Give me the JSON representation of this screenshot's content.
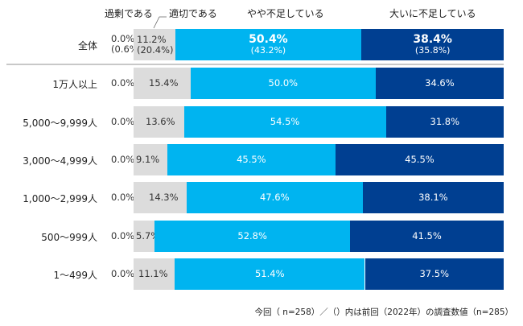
{
  "chart_data": {
    "type": "bar",
    "orientation": "horizontal-stacked-100",
    "legend": [
      "過剰である",
      "適切である",
      "やや不足している",
      "大いに不足している"
    ],
    "colors": [
      "#dcdcdc",
      "#dcdcdc",
      "#00b4f0",
      "#003f91"
    ],
    "xlim": [
      0,
      100
    ],
    "categories": [
      "全体",
      "1万人以上",
      "5,000〜9,999人",
      "3,000〜4,999人",
      "1,000〜2,999人",
      "500〜999人",
      "1〜499人"
    ],
    "series": [
      {
        "name": "過剰である",
        "values": [
          0.0,
          0.0,
          0.0,
          0.0,
          0.0,
          0.0,
          0.0
        ],
        "labels": [
          "0.0%",
          "0.0%",
          "0.0%",
          "0.0%",
          "0.0%",
          "0.0%",
          "0.0%"
        ]
      },
      {
        "name": "適切である",
        "values": [
          11.2,
          15.4,
          13.6,
          9.1,
          14.3,
          5.7,
          11.1
        ],
        "labels": [
          "11.2%",
          "15.4%",
          "13.6%",
          "9.1%",
          "14.3%",
          "5.7%",
          "11.1%"
        ]
      },
      {
        "name": "やや不足している",
        "values": [
          50.4,
          50.0,
          54.5,
          45.5,
          47.6,
          52.8,
          51.4
        ],
        "labels": [
          "50.4%",
          "50.0%",
          "54.5%",
          "45.5%",
          "47.6%",
          "52.8%",
          "51.4%"
        ]
      },
      {
        "name": "大いに不足している",
        "values": [
          38.4,
          34.6,
          31.8,
          45.5,
          38.1,
          41.5,
          37.5
        ],
        "labels": [
          "38.4%",
          "34.6%",
          "31.8%",
          "45.5%",
          "38.1%",
          "41.5%",
          "37.5%"
        ]
      }
    ],
    "previous_total": {
      "label": "全体",
      "values": [
        0.6,
        20.4,
        43.2,
        35.8
      ],
      "labels": [
        "(0.6%)",
        "(20.4%)",
        "(43.2%)",
        "(35.8%)"
      ]
    },
    "footer": "今回（ n=258）／（）内は前回（2022年）の調査数値（n=285）"
  }
}
